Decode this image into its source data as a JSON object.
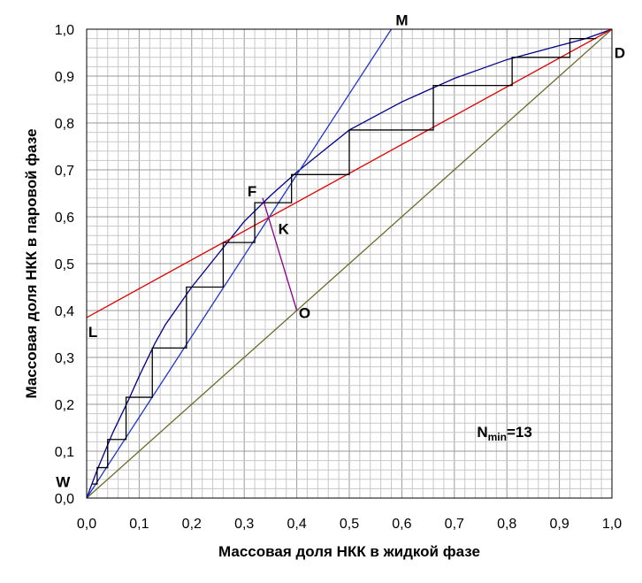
{
  "chart_data": {
    "type": "line",
    "xlabel": "Массовая доля НКК в жидкой фазе",
    "ylabel": "Массовая доля НКК в паровой фазе",
    "xlim": [
      0,
      1
    ],
    "ylim": [
      0,
      1
    ],
    "x_ticks": [
      "0,0",
      "0,1",
      "0,2",
      "0,3",
      "0,4",
      "0,5",
      "0,6",
      "0,7",
      "0,8",
      "0,9",
      "1,0"
    ],
    "y_ticks": [
      "0,0",
      "0,1",
      "0,2",
      "0,3",
      "0,4",
      "0,5",
      "0,6",
      "0,7",
      "0,8",
      "0,9",
      "1,0"
    ],
    "grid": true,
    "minor_step": 0.02,
    "series": [
      {
        "key": "equilibrium",
        "color": "#00008b",
        "points": [
          [
            0,
            0
          ],
          [
            0.02,
            0.06
          ],
          [
            0.05,
            0.14
          ],
          [
            0.08,
            0.21
          ],
          [
            0.1,
            0.26
          ],
          [
            0.13,
            0.33
          ],
          [
            0.15,
            0.37
          ],
          [
            0.2,
            0.45
          ],
          [
            0.25,
            0.52
          ],
          [
            0.3,
            0.59
          ],
          [
            0.35,
            0.645
          ],
          [
            0.4,
            0.695
          ],
          [
            0.45,
            0.74
          ],
          [
            0.5,
            0.785
          ],
          [
            0.55,
            0.815
          ],
          [
            0.6,
            0.845
          ],
          [
            0.65,
            0.87
          ],
          [
            0.7,
            0.895
          ],
          [
            0.75,
            0.915
          ],
          [
            0.8,
            0.935
          ],
          [
            0.85,
            0.95
          ],
          [
            0.9,
            0.965
          ],
          [
            0.95,
            0.98
          ],
          [
            1,
            1
          ]
        ]
      },
      {
        "key": "diagonal",
        "color": "#6b6b2a",
        "points": [
          [
            0,
            0
          ],
          [
            1,
            1
          ]
        ]
      },
      {
        "key": "enriching-operating-line",
        "color": "#e00000",
        "points": [
          [
            0,
            0.385
          ],
          [
            1,
            1
          ]
        ]
      },
      {
        "key": "stripping-operating-line",
        "color": "#1f35c9",
        "points": [
          [
            0,
            0
          ],
          [
            0.58,
            1
          ]
        ]
      },
      {
        "key": "feed-line",
        "color": "#8b008b",
        "points": [
          [
            0.335,
            0.64
          ],
          [
            0.4,
            0.4
          ]
        ]
      },
      {
        "key": "stages",
        "color": "#000000",
        "points": [
          [
            0.97,
            0.98
          ],
          [
            0.92,
            0.98
          ],
          [
            0.92,
            0.94
          ],
          [
            0.81,
            0.94
          ],
          [
            0.81,
            0.88
          ],
          [
            0.66,
            0.88
          ],
          [
            0.66,
            0.785
          ],
          [
            0.5,
            0.785
          ],
          [
            0.5,
            0.69
          ],
          [
            0.39,
            0.69
          ],
          [
            0.39,
            0.63
          ],
          [
            0.32,
            0.63
          ],
          [
            0.32,
            0.545
          ],
          [
            0.26,
            0.545
          ],
          [
            0.26,
            0.45
          ],
          [
            0.19,
            0.45
          ],
          [
            0.19,
            0.32
          ],
          [
            0.125,
            0.32
          ],
          [
            0.125,
            0.215
          ],
          [
            0.075,
            0.215
          ],
          [
            0.075,
            0.125
          ],
          [
            0.04,
            0.125
          ],
          [
            0.04,
            0.065
          ],
          [
            0.02,
            0.065
          ],
          [
            0.02,
            0.03
          ],
          [
            0.01,
            0.03
          ]
        ]
      }
    ],
    "annotations": [
      {
        "text": "M",
        "x": 0.6,
        "y": 1.02
      },
      {
        "text": "D",
        "x": 1.015,
        "y": 0.95
      },
      {
        "text": "F",
        "x": 0.315,
        "y": 0.655
      },
      {
        "text": "K",
        "x": 0.375,
        "y": 0.575
      },
      {
        "text": "O",
        "x": 0.415,
        "y": 0.395
      },
      {
        "text": "L",
        "x": 0.012,
        "y": 0.355
      },
      {
        "text": "W",
        "x": -0.045,
        "y": 0.035
      }
    ],
    "nmin": {
      "label": "N",
      "sub": "min",
      "value": "=13",
      "x": 0.78,
      "y": 0.13
    }
  }
}
